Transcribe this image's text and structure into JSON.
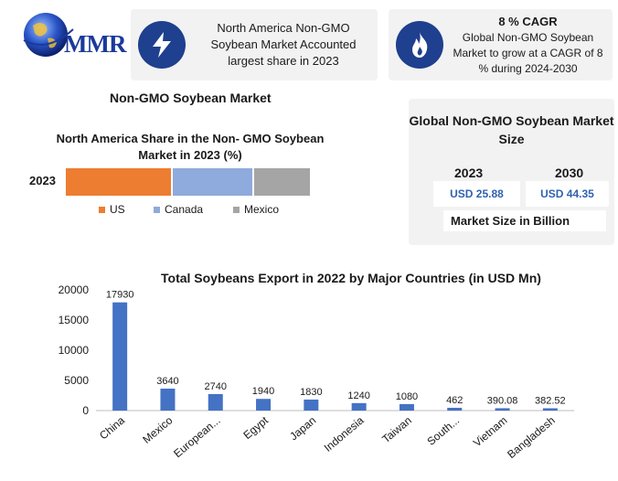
{
  "logo": {
    "text": "MMR"
  },
  "info_cards": [
    {
      "icon": "lightning-icon",
      "text": "North America Non-GMO Soybean Market Accounted largest share in 2023"
    },
    {
      "icon": "flame-icon",
      "title": "8 % CAGR",
      "text": "Global Non-GMO Soybean Market to grow at a CAGR of 8 % during 2024-2030"
    }
  ],
  "section_title": "Non-GMO Soybean Market",
  "share_chart": {
    "title": "North America Share in the Non- GMO Soybean Market in 2023 (%)",
    "category": "2023",
    "segments": [
      {
        "name": "US",
        "share": 0.44,
        "color": "#ed7d31"
      },
      {
        "name": "Canada",
        "share": 0.33,
        "color": "#8faadc"
      },
      {
        "name": "Mexico",
        "share": 0.23,
        "color": "#a5a5a5"
      }
    ]
  },
  "market_size": {
    "title": "Global Non-GMO Soybean Market Size",
    "years": [
      "2023",
      "2030"
    ],
    "values": [
      "USD 25.88",
      "USD 44.35"
    ],
    "unit_label": "Market Size in Billion"
  },
  "chart_data": {
    "type": "bar",
    "title": "Total Soybeans Export in 2022 by Major Countries (in USD Mn)",
    "categories": [
      "China",
      "Mexico",
      "European...",
      "Egypt",
      "Japan",
      "Indonesia",
      "Taiwan",
      "South...",
      "Vietnam",
      "Bangladesh"
    ],
    "values": [
      17930,
      3640,
      2740,
      1940,
      1830,
      1240,
      1080,
      462,
      390.08,
      382.52
    ],
    "value_labels": [
      "17930",
      "3640",
      "2740",
      "1940",
      "1830",
      "1240",
      "1080",
      "462",
      "390.08",
      "382.52"
    ],
    "yticks": [
      "0",
      "5000",
      "10000",
      "15000",
      "20000"
    ],
    "ylim": [
      0,
      20000
    ],
    "xlabel": "",
    "ylabel": "",
    "bar_color": "#4472c4",
    "grid": false,
    "legend": "none"
  }
}
